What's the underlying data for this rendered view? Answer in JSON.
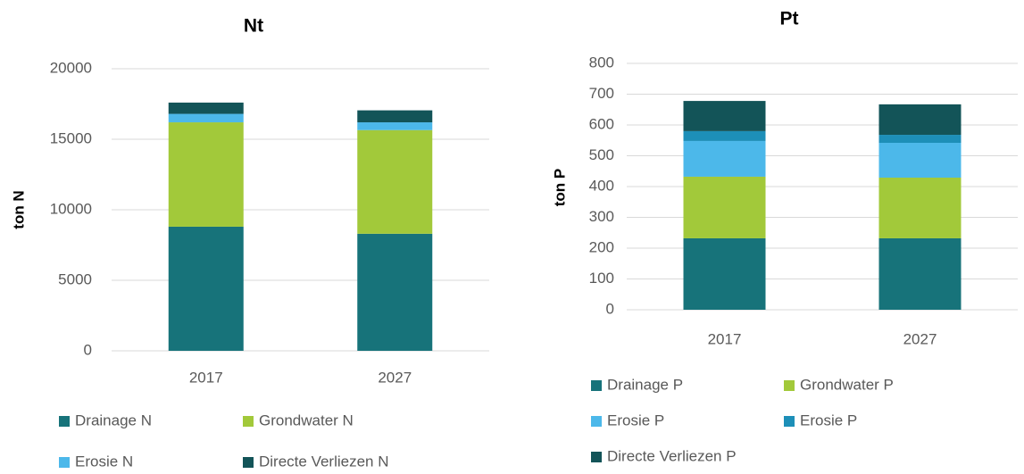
{
  "chart_data": [
    {
      "type": "stacked_bar",
      "title": "Nt",
      "ylabel": "ton N",
      "categories": [
        "2017",
        "2027"
      ],
      "series": [
        {
          "name": "Drainage N",
          "color": "#17737a",
          "values": [
            8800,
            8300
          ]
        },
        {
          "name": "Grondwater N",
          "color": "#a2c93a",
          "values": [
            7400,
            7350
          ]
        },
        {
          "name": "Erosie N",
          "color": "#4cb8ea",
          "values": [
            600,
            550
          ]
        },
        {
          "name": "Directe Verliezen N",
          "color": "#135458",
          "values": [
            800,
            850
          ]
        }
      ],
      "ylim": [
        0,
        20000
      ],
      "yticks": [
        0,
        5000,
        10000,
        15000,
        20000
      ],
      "grid": true,
      "legend": "bottom"
    },
    {
      "type": "stacked_bar",
      "title": "Pt",
      "ylabel": "ton P",
      "categories": [
        "2017",
        "2027"
      ],
      "series": [
        {
          "name": "Drainage P",
          "color": "#17737a",
          "values": [
            232,
            232
          ]
        },
        {
          "name": "Grondwater P",
          "color": "#a2c93a",
          "values": [
            200,
            197
          ]
        },
        {
          "name": "Erosie P",
          "color": "#4cb8ea",
          "values": [
            116,
            113
          ]
        },
        {
          "name": "Erosie P",
          "color": "#1d8fb8",
          "values": [
            32,
            26
          ]
        },
        {
          "name": "Directe Verliezen P",
          "color": "#135458",
          "values": [
            98,
            99
          ]
        }
      ],
      "ylim": [
        0,
        800
      ],
      "yticks": [
        0,
        100,
        200,
        300,
        400,
        500,
        600,
        700,
        800
      ],
      "grid": true,
      "legend": "bottom"
    }
  ]
}
